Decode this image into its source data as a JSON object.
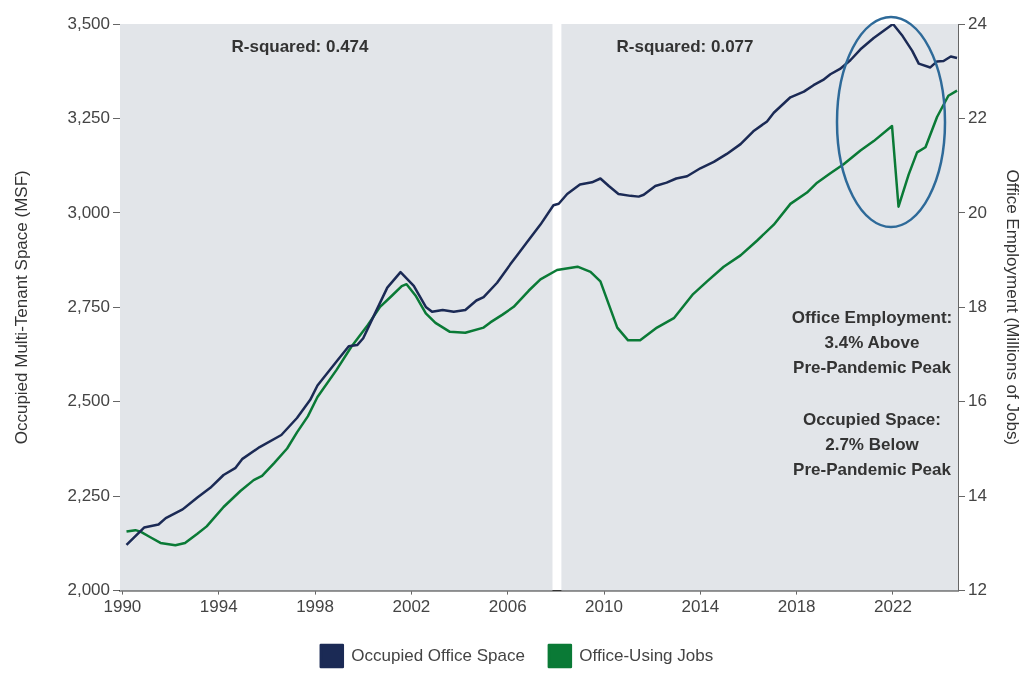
{
  "chart_data": {
    "type": "line",
    "xlim": [
      1989.9,
      2024.7
    ],
    "xticks": [
      1990,
      1994,
      1998,
      2002,
      2006,
      2010,
      2014,
      2018,
      2022
    ],
    "ylim": [
      2000,
      3500
    ],
    "yticks": [
      {
        "value": 2000,
        "label": "2,000"
      },
      {
        "value": 2250,
        "label": "2,250"
      },
      {
        "value": 2500,
        "label": "2,500"
      },
      {
        "value": 2750,
        "label": "2,750"
      },
      {
        "value": 3000,
        "label": "3,000"
      },
      {
        "value": 3250,
        "label": "3,250"
      },
      {
        "value": 3500,
        "label": "3,500"
      }
    ],
    "y2lim": [
      12,
      24
    ],
    "y2ticks": [
      12,
      14,
      16,
      18,
      20,
      22,
      24
    ],
    "ylabel": "Occupied Multi-Tenant Space (MSF)",
    "y2label": "Office Employment (Millions of Jobs)",
    "legend": "bottom",
    "marker": "none",
    "line_style": "solid",
    "bands": [
      {
        "axis": "x",
        "from": 1989.9,
        "to": 2007.86,
        "color": "#e2e5e9"
      },
      {
        "axis": "x",
        "from": 2008.23,
        "to": 2024.7,
        "color": "#e2e5e9"
      }
    ],
    "annotations": [
      "R-squared: 0.474",
      "R-squared: 0.077",
      "Office Employment:\n3.4% Above\nPre-Pandemic Peak",
      "Occupied Space:\n2.7% Below\nPre-Pandemic Peak"
    ],
    "series": [
      {
        "name": "Occupied Office Space",
        "color": "#1b2a55",
        "x": [
          1990.17,
          1990.9,
          1991.5,
          1991.8,
          1992.5,
          1993.1,
          1993.65,
          1994.2,
          1994.7,
          1994.97,
          1995.7,
          1996.6,
          1997.25,
          1997.8,
          1998.1,
          1998.9,
          1999.4,
          1999.75,
          2000.0,
          2000.4,
          2001.0,
          2001.55,
          2002.1,
          2002.6,
          2002.86,
          2003.3,
          2003.76,
          2004.24,
          2004.7,
          2005.0,
          2005.56,
          2006.1,
          2006.8,
          2007.36,
          2007.9,
          2008.12,
          2008.47,
          2009.0,
          2009.5,
          2009.85,
          2010.2,
          2010.6,
          2011.1,
          2011.44,
          2011.65,
          2012.13,
          2012.6,
          2013.0,
          2013.45,
          2014.0,
          2014.56,
          2015.1,
          2015.67,
          2016.2,
          2016.77,
          2017.05,
          2017.74,
          2018.3,
          2018.7,
          2019.1,
          2019.4,
          2019.8,
          2020.23,
          2020.65,
          2021.2,
          2022.0,
          2022.4,
          2022.8,
          2023.07,
          2023.55,
          2023.83,
          2024.1,
          2024.4,
          2024.66
        ],
        "values": [
          2121,
          2167,
          2175,
          2192,
          2215,
          2246,
          2272,
          2306,
          2325,
          2348,
          2380,
          2412,
          2457,
          2505,
          2543,
          2607,
          2647,
          2650,
          2668,
          2722,
          2802,
          2843,
          2807,
          2751,
          2738,
          2743,
          2738,
          2743,
          2768,
          2777,
          2815,
          2863,
          2922,
          2969,
          3020,
          3024,
          3050,
          3075,
          3081,
          3091,
          3071,
          3050,
          3045,
          3043,
          3048,
          3071,
          3080,
          3091,
          3097,
          3118,
          3135,
          3156,
          3182,
          3216,
          3242,
          3265,
          3306,
          3321,
          3338,
          3352,
          3367,
          3381,
          3404,
          3433,
          3463,
          3500,
          3468,
          3429,
          3395,
          3385,
          3401,
          3402,
          3414,
          3410
        ]
      },
      {
        "name": "Office-Using Jobs",
        "color": "#0a7a36",
        "axis": "y2",
        "x": [
          1990.17,
          1990.54,
          1990.75,
          1991.16,
          1991.58,
          1992.2,
          1992.6,
          1993.1,
          1993.5,
          1994.2,
          1994.9,
          1995.45,
          1995.8,
          1996.3,
          1996.84,
          1997.25,
          1997.7,
          1998.1,
          1998.9,
          1999.5,
          2000.2,
          2000.7,
          2001.2,
          2001.6,
          2001.8,
          2002.17,
          2002.6,
          2003.0,
          2003.6,
          2004.24,
          2005.0,
          2005.28,
          2005.77,
          2006.25,
          2006.87,
          2007.36,
          2008.05,
          2008.9,
          2009.44,
          2009.85,
          2010.55,
          2011.0,
          2011.5,
          2012.2,
          2012.9,
          2013.7,
          2014.28,
          2014.97,
          2015.67,
          2016.35,
          2017.05,
          2017.74,
          2018.43,
          2018.85,
          2019.4,
          2019.95,
          2020.65,
          2021.2,
          2021.96,
          2022.23,
          2022.65,
          2023.0,
          2023.35,
          2023.83,
          2024.3,
          2024.66
        ],
        "values": [
          13.25,
          13.28,
          13.25,
          13.13,
          13.01,
          12.96,
          13.01,
          13.2,
          13.36,
          13.77,
          14.11,
          14.34,
          14.43,
          14.7,
          15.01,
          15.35,
          15.69,
          16.1,
          16.68,
          17.16,
          17.63,
          18.01,
          18.25,
          18.45,
          18.49,
          18.25,
          17.87,
          17.67,
          17.48,
          17.46,
          17.57,
          17.68,
          17.84,
          18.01,
          18.35,
          18.59,
          18.79,
          18.86,
          18.75,
          18.55,
          17.57,
          17.3,
          17.3,
          17.57,
          17.77,
          18.28,
          18.55,
          18.86,
          19.1,
          19.41,
          19.75,
          20.19,
          20.43,
          20.64,
          20.84,
          21.03,
          21.32,
          21.52,
          21.84,
          20.13,
          20.81,
          21.28,
          21.39,
          22.03,
          22.48,
          22.59
        ]
      }
    ]
  }
}
